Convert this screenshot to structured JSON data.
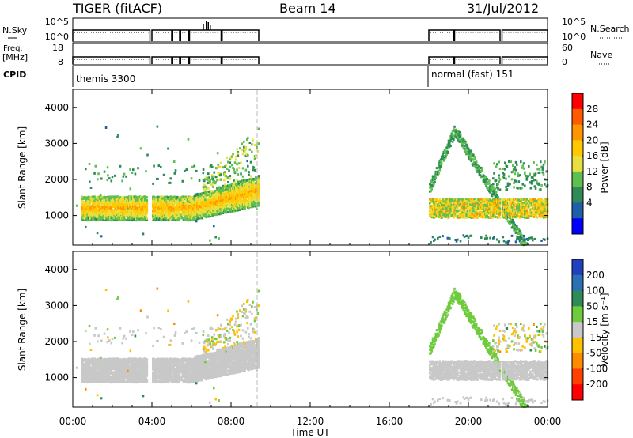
{
  "header": {
    "title": "TIGER (fitACF)",
    "beam": "Beam 14",
    "date": "31/Jul/2012"
  },
  "params": {
    "nsky_label": "N.Sky",
    "nsearch_label": "N.Search",
    "nsky_ticks": [
      "10^5",
      "10^0"
    ],
    "nsearch_ticks": [
      "10^5",
      "10^0"
    ],
    "freq_label": "Freq.",
    "freq_unit": "[MHz]",
    "freq_ticks": [
      "18",
      "8"
    ],
    "nave_label": "Nave",
    "nave_ticks": [
      "60",
      "0"
    ],
    "cpid_label": "CPID",
    "cpid_left": "themis 3300",
    "cpid_right": "normal (fast) 151"
  },
  "panels": {
    "ylabel": "Slant Range [km]",
    "yticks": [
      "4000",
      "3000",
      "2000",
      "1000"
    ],
    "xticks": [
      "00:00",
      "04:00",
      "08:00",
      "12:00",
      "16:00",
      "20:00",
      "00:00"
    ],
    "xlabel": "Time UT"
  },
  "colorbars": {
    "power": {
      "label": "Power [dB]",
      "ticks": [
        "28",
        "24",
        "20",
        "16",
        "12",
        "8",
        "4"
      ],
      "colors": [
        "#ff0000",
        "#ff5a00",
        "#ff9600",
        "#ffc800",
        "#e8e040",
        "#5fbf50",
        "#2e8b57",
        "#1f5fa8",
        "#0000ff"
      ]
    },
    "velocity": {
      "label": "Velocity [m s⁻¹]",
      "ticks": [
        "200",
        "100",
        "50",
        "15",
        "-15",
        "-50",
        "-100",
        "-200"
      ],
      "colors": [
        "#2040c0",
        "#2b6fb5",
        "#2e8b57",
        "#6ecb3c",
        "#c8c8c8",
        "#ffc000",
        "#ff8c00",
        "#ff4000",
        "#ff0000"
      ]
    }
  },
  "chart_data": [
    {
      "type": "heatmap",
      "title": "Power [dB]",
      "xlabel": "Time UT",
      "ylabel": "Slant Range [km]",
      "xlim": [
        0,
        24
      ],
      "ylim": [
        180,
        4500
      ],
      "colorbar_range": [
        0,
        32
      ],
      "scatter_bands": [
        {
          "t_start": 0.5,
          "t_end": 7.0,
          "range_low": 900,
          "range_high": 1600,
          "power_typical": 18
        },
        {
          "t_start": 7.0,
          "t_end": 9.4,
          "range_low": 1200,
          "range_high": 2400,
          "power_typical": 20
        },
        {
          "t_start": 18.0,
          "t_end": 24.0,
          "range_low": 900,
          "range_high": 3500,
          "power_typical": 12
        }
      ]
    },
    {
      "type": "heatmap",
      "title": "Velocity [m s⁻¹]",
      "xlabel": "Time UT",
      "ylabel": "Slant Range [km]",
      "xlim": [
        0,
        24
      ],
      "ylim": [
        180,
        4500
      ],
      "colorbar_range": [
        -250,
        250
      ],
      "scatter_bands": [
        {
          "t_start": 0.5,
          "t_end": 9.4,
          "range_low": 900,
          "range_high": 2400,
          "velocity_typical": 0
        },
        {
          "t_start": 18.0,
          "t_end": 24.0,
          "range_low": 900,
          "range_high": 3500,
          "velocity_typical": 20
        }
      ]
    }
  ]
}
